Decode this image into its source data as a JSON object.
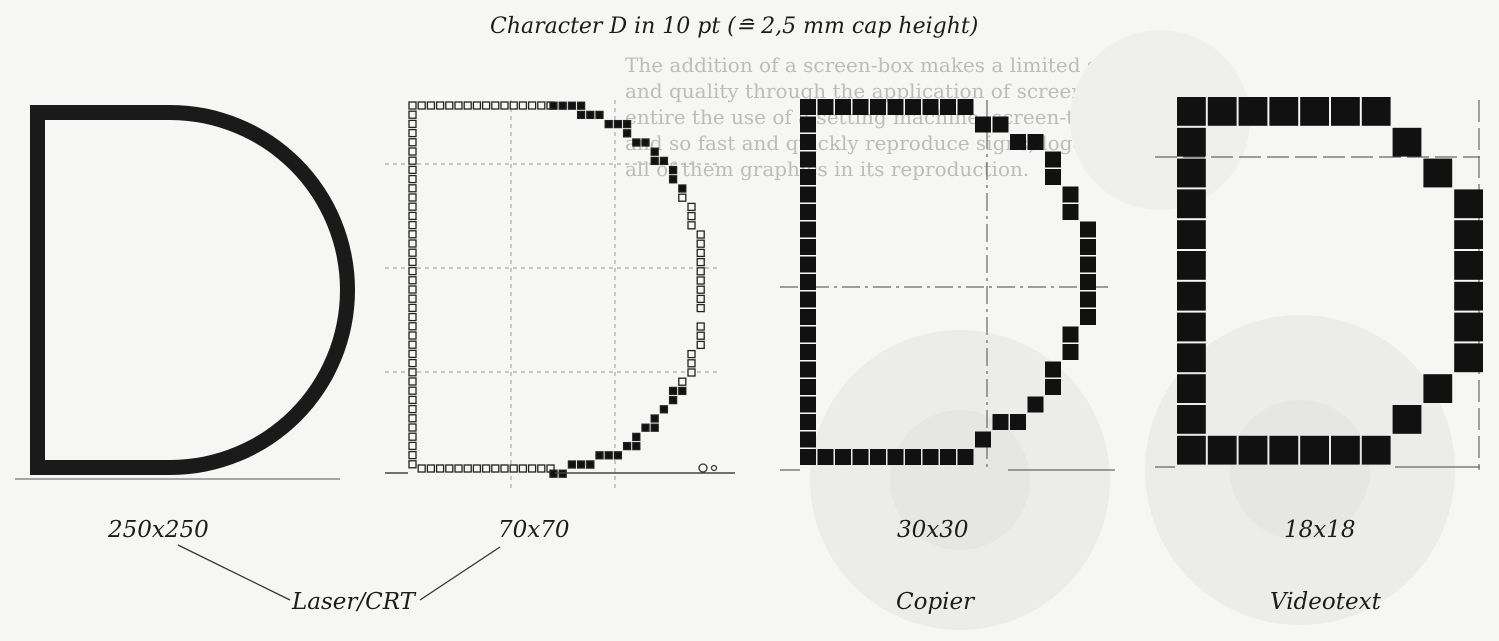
{
  "title": "Character D in 10 pt (≘ 2,5 mm cap height)",
  "variants": [
    {
      "resolution": "250x250"
    },
    {
      "resolution": "70x70"
    },
    {
      "resolution": "30x30",
      "device": "Copier"
    },
    {
      "resolution": "18x18",
      "device": "Videotext"
    }
  ],
  "shared_device": "Laser/CRT",
  "bleed_through_text": [
    "The addition of a screen-box makes a limited selection",
    "and quality through the application of screen-dots",
    "entire the use of a setting machine, screen-type in",
    "and so fast and quickly reproduce signs, logos",
    "all of them graphics in its reproduction."
  ],
  "colors": {
    "ink": "#111111",
    "background": "#f6f6f4",
    "guide": "#777777"
  }
}
